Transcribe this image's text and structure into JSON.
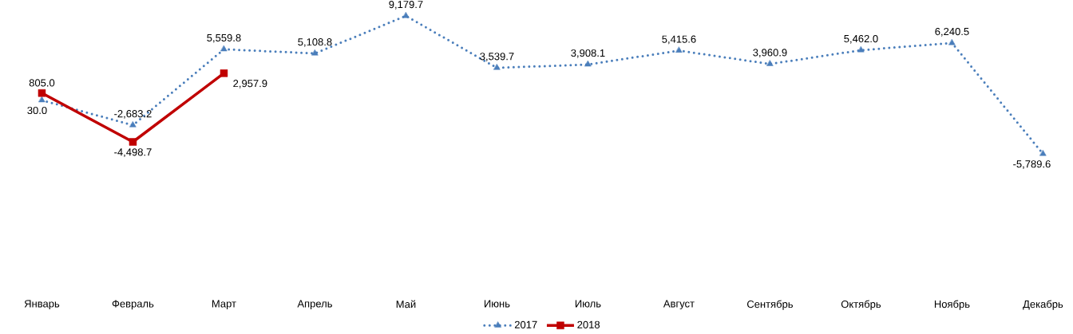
{
  "chart_data": {
    "type": "line",
    "categories": [
      "Январь",
      "Февраль",
      "Март",
      "Апрель",
      "Май",
      "Июнь",
      "Июль",
      "Август",
      "Сентябрь",
      "Октябрь",
      "Ноябрь",
      "Декабрь"
    ],
    "series": [
      {
        "name": "2017",
        "color": "#4a7ebb",
        "marker": "triangle",
        "line_style": "dotted",
        "values": [
          30.0,
          -2683.2,
          5559.8,
          5108.8,
          9179.7,
          3539.7,
          3908.1,
          5415.6,
          3960.9,
          5462.0,
          6240.5,
          -5789.6
        ],
        "value_labels": [
          "30.0",
          "-2,683.2",
          "5,559.8",
          "5,108.8",
          "9,179.7",
          "3,539.7",
          "3,908.1",
          "5,415.6",
          "3,960.9",
          "5,462.0",
          "6,240.5",
          "-5,789.6"
        ]
      },
      {
        "name": "2018",
        "color": "#c00000",
        "marker": "square",
        "line_style": "solid",
        "values": [
          805.0,
          -4498.7,
          2957.9,
          null,
          null,
          null,
          null,
          null,
          null,
          null,
          null,
          null
        ],
        "value_labels": [
          "805.0",
          "-4,498.7",
          "2,957.9",
          null,
          null,
          null,
          null,
          null,
          null,
          null,
          null,
          null
        ]
      }
    ],
    "legend": "bottom"
  }
}
